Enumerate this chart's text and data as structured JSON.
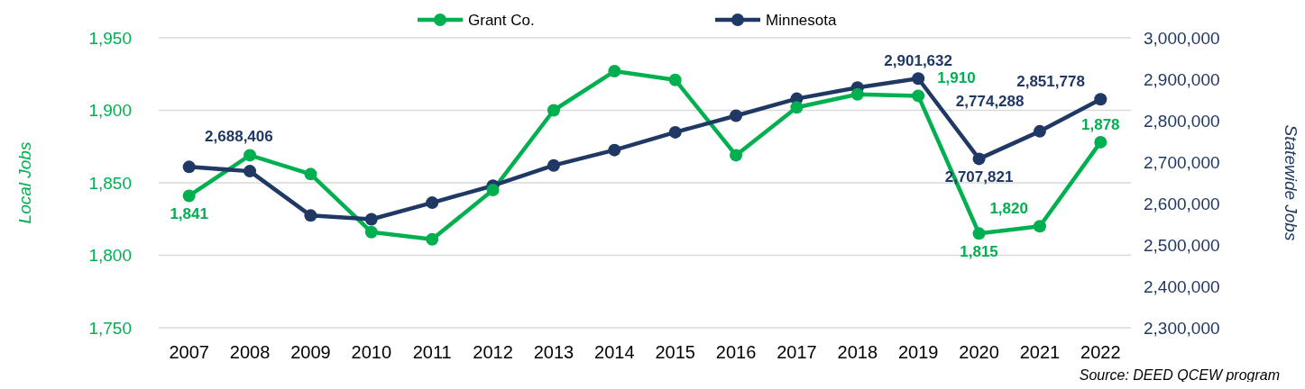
{
  "chart_data": {
    "type": "line",
    "categories": [
      "2007",
      "2008",
      "2009",
      "2010",
      "2011",
      "2012",
      "2013",
      "2014",
      "2015",
      "2016",
      "2017",
      "2018",
      "2019",
      "2020",
      "2021",
      "2022"
    ],
    "series": [
      {
        "name": "Grant Co.",
        "color": "#00b050",
        "values": [
          1841,
          1869,
          1856,
          1816,
          1811,
          1845,
          1900,
          1927,
          1921,
          1869,
          1902,
          1911,
          1910,
          1815,
          1820,
          1878
        ],
        "value_labels": [
          "1,841",
          null,
          null,
          null,
          null,
          null,
          null,
          null,
          null,
          null,
          null,
          null,
          "1,910",
          "1,815",
          "1,820",
          "1,878"
        ]
      },
      {
        "name": "Minnesota",
        "color": "#1f3864",
        "axis": "y2",
        "values": [
          2688406,
          2678000,
          2571000,
          2562000,
          2602000,
          2643000,
          2692000,
          2729000,
          2772000,
          2812000,
          2853000,
          2880000,
          2901632,
          2707821,
          2774288,
          2851778
        ],
        "value_labels": [
          "2,688,406",
          null,
          null,
          null,
          null,
          null,
          null,
          null,
          null,
          null,
          null,
          null,
          "2,901,632",
          "2,707,821",
          "2,774,288",
          "2,851,778"
        ]
      }
    ],
    "ylabel": "Local Jobs",
    "y2label": "Statewide Jobs",
    "ylim": [
      1750,
      1950
    ],
    "yticks": [
      {
        "value": 1750,
        "label": "1,750"
      },
      {
        "value": 1800,
        "label": "1,800"
      },
      {
        "value": 1850,
        "label": "1,850"
      },
      {
        "value": 1900,
        "label": "1,900"
      },
      {
        "value": 1950,
        "label": "1,950"
      }
    ],
    "y2lim": [
      2300000,
      3000000
    ],
    "y2ticks": [
      {
        "value": 2300000,
        "label": "2,300,000"
      },
      {
        "value": 2400000,
        "label": "2,400,000"
      },
      {
        "value": 2500000,
        "label": "2,500,000"
      },
      {
        "value": 2600000,
        "label": "2,600,000"
      },
      {
        "value": 2700000,
        "label": "2,700,000"
      },
      {
        "value": 2800000,
        "label": "2,800,000"
      },
      {
        "value": 2900000,
        "label": "2,900,000"
      },
      {
        "value": 3000000,
        "label": "3,000,000"
      }
    ],
    "grid": "y",
    "legend": "top",
    "marker": "circle",
    "line_style": "solid",
    "annotations": [
      "Source: DEED QCEW program"
    ]
  }
}
